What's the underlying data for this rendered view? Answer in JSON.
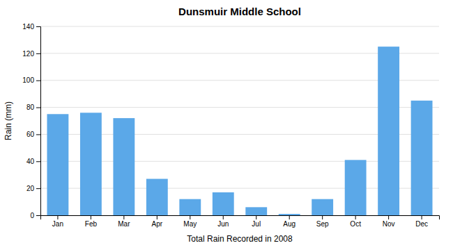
{
  "chart_data": {
    "type": "bar",
    "title": "Dunsmuir Middle School",
    "xlabel": "Total Rain Recorded in 2008",
    "ylabel": "Rain (mm)",
    "categories": [
      "Jan",
      "Feb",
      "Mar",
      "Apr",
      "May",
      "Jun",
      "Jul",
      "Aug",
      "Sep",
      "Oct",
      "Nov",
      "Dec"
    ],
    "values": [
      75,
      76,
      72,
      27,
      12,
      17,
      6,
      1,
      12,
      41,
      125,
      85
    ],
    "color": "#5ba8e8",
    "ylim": [
      0,
      140
    ],
    "yticks": [
      0,
      20,
      40,
      60,
      80,
      100,
      120,
      140
    ],
    "grid": true
  }
}
